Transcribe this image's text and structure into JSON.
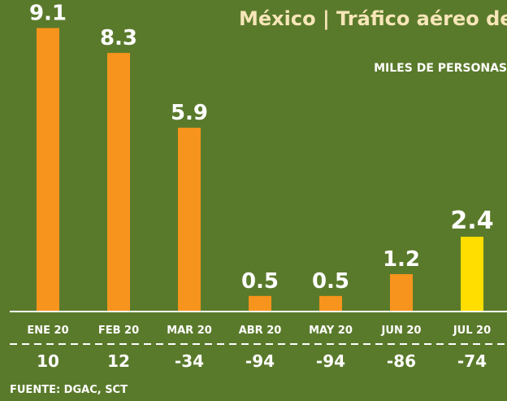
{
  "chart_data": {
    "type": "bar",
    "title": "México | Tráfico aéreo de pasajeros |",
    "subtitle": "MILES DE PERSONAS",
    "categories": [
      "ENE 20",
      "FEB 20",
      "MAR 20",
      "ABR 20",
      "MAY 20",
      "JUN 20",
      "JUL 20"
    ],
    "values": [
      9.1,
      8.3,
      5.9,
      0.5,
      0.5,
      1.2,
      2.4
    ],
    "value_labels": [
      "9.1",
      "8.3",
      "5.9",
      "0.5",
      "0.5",
      "1.2",
      "2.4"
    ],
    "changes": [
      "10",
      "12",
      "-34",
      "-94",
      "-94",
      "-86",
      "-74"
    ],
    "highlight_index": 6,
    "ylim": [
      0,
      10
    ],
    "grid": false,
    "source": "FUENTE: DGAC, SCT",
    "colors": {
      "background": "#5a7a2b",
      "bar": "#f7941d",
      "highlight": "#ffde00",
      "text": "#ffffff",
      "title": "#f7e6b8"
    }
  }
}
